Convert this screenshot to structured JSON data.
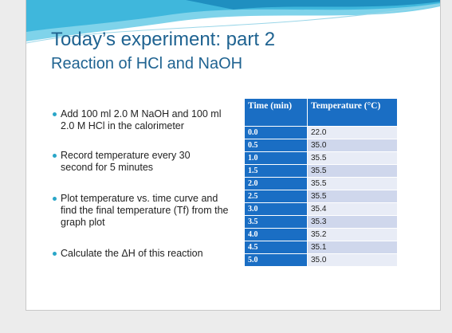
{
  "header": {
    "title": "Today’s experiment: part 2",
    "subtitle": "Reaction of HCl and NaOH"
  },
  "bullets": [
    "Add 100 ml 2.0 M NaOH and 100 ml 2.0 M HCl in the calorimeter",
    "Record temperature every 30 second for 5 minutes",
    "Plot temperature vs. time curve and find the final temperature (Tf) from the graph plot",
    "Calculate the ΔH of this reaction"
  ],
  "table": {
    "header": [
      "Time (min)",
      "Temperature (°C)"
    ],
    "rows": [
      [
        "0.0",
        "22.0"
      ],
      [
        "0.5",
        "35.0"
      ],
      [
        "1.0",
        "35.5"
      ],
      [
        "1.5",
        "35.5"
      ],
      [
        "2.0",
        "35.5"
      ],
      [
        "2.5",
        "35.5"
      ],
      [
        "3.0",
        "35.4"
      ],
      [
        "3.5",
        "35.3"
      ],
      [
        "4.0",
        "35.2"
      ],
      [
        "4.5",
        "35.1"
      ],
      [
        "5.0",
        "35.0"
      ]
    ]
  }
}
